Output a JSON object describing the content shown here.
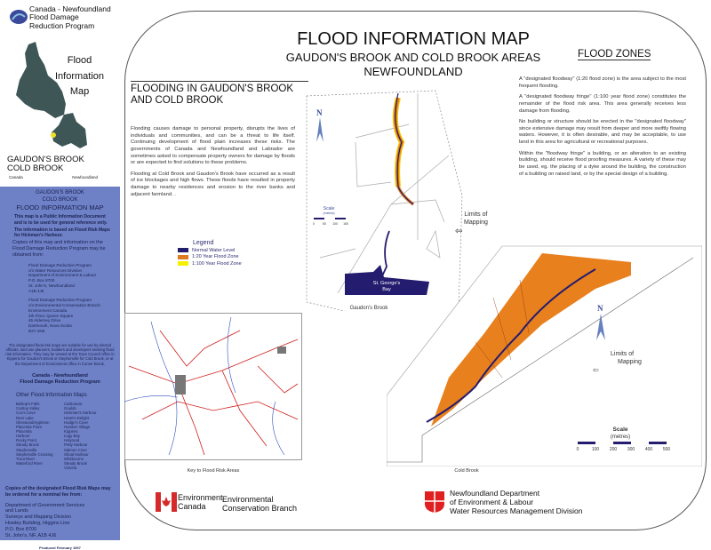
{
  "sidebar": {
    "program": [
      "Canada - Newfoundland",
      "Flood Damage",
      "Reduction Program"
    ],
    "map_title": [
      "Flood",
      "Information",
      "Map"
    ],
    "area": [
      "GAUDON'S BROOK",
      "COLD BROOK"
    ],
    "logo_canada": "Canada",
    "logo_newfoundland": "Newfoundland",
    "panel": {
      "area1": "GAUDON'S BROOK",
      "area2": "COLD BROOK",
      "heading": "FLOOD INFORMATION MAP",
      "notice1": "This map is a Public Information Document and is to be used for general reference only.",
      "notice2": "The information is based on Flood Risk Maps for Hickman's Harbour.",
      "copies": "Copies of this map and information on the Flood Damage Reduction Program may be obtained from:",
      "address1": [
        "Flood Damage Reduction Program",
        "c/o Water Resources Division",
        "Department of Environment & Labour",
        "P.O. Box 8700",
        "St. John's, Newfoundland",
        "A1B 4J6"
      ],
      "address2": [
        "Flood Damage Reduction Program",
        "c/o Environmental Conservation Branch",
        "Environment Canada",
        "4th Floor, Queen Square",
        "45 Alderney Drive",
        "Dartmouth, Nova Scotia",
        "B2Y 2N6"
      ],
      "designated": "The designated flood risk maps are suitable for use by elected officials, land use planners, builders and developers seeking flood risk information. They may be viewed at the Town Council office in Kippens for Gaudon's Brook or Stephenville for Cold Brook, or at the Department of Environment office in Corner Brook.",
      "program_name": [
        "Canada - Newfoundland",
        "Flood Damage Reduction Program"
      ],
      "other_maps_heading": "Other Flood Information Maps",
      "other_maps_left": [
        "Bishop's Falls",
        "Codroy Valley",
        "Cox's Cove",
        "Deer Lake",
        "Glenwood/Appleton",
        "Placentia Point",
        "Placentia",
        "Harbour",
        "Rocky Point",
        "Steady Brook",
        "Stephenville",
        "Stephenville Crossing",
        "Trout River",
        "Waterford River"
      ],
      "other_maps_right": [
        "Carbonear",
        "Goulds",
        "Hickman's Harbour",
        "Heart's Delight",
        "Hodge's Cove",
        "Humber Village",
        "Kippens",
        "Logy Bay",
        "Holyrood",
        "Petty Harbour",
        "Salmon Cove",
        "Shoal Harbour",
        "Whitbourne",
        "Steady Brook",
        "Victoria"
      ],
      "copies_risk": "Copies of the designated Flood Risk Maps may be ordered for a nominal fee from:",
      "address3": [
        "Department of Government Services",
        "and Lands",
        "Surveys and Mapping Division",
        "Howley Building, Higgins Line",
        "P.O. Box 8700",
        "St. John's, NF,  A1B 4J6"
      ],
      "produced": "Produced February 1997"
    }
  },
  "main": {
    "title": "FLOOD INFORMATION MAP",
    "subtitle1": "GAUDON'S BROOK AND COLD BROOK AREAS",
    "subtitle2": "NEWFOUNDLAND",
    "left_heading": "FLOODING  IN  GAUDON'S BROOK AND COLD BROOK",
    "left_paragraphs": [
      "Flooding causes damage to personal property, disrupts the lives of individuals and communities, and can be a threat to life itself. Continuing development of flood plain increases these risks. The governments of Canada and Newfoundland and Labrador are sometimes asked to compensate property owners for damage by floods or are expected to find solutions to these problems.",
      "Flooding at Cold Brook and Gaudon's Brook have occurred as a result of ice blockages and high flows.  These floods have resulted in property damage to nearby residences and erosion to the river banks and adjacent farmland. ."
    ],
    "right_heading": "FLOOD ZONES",
    "right_paragraphs": [
      "A \"designated floodway\" (1:20 flood zone) is the area subject to the most frequent flooding.",
      "A \"designated floodway fringe\" (1:100 year flood zone) constitutes the remainder of the flood risk area.   This area generally receives less damage from flooding.",
      "No building or structure should be erected in the \"designated floodway\" since extensive damage may result from deeper and more swiftly flowing waters.   However, it is often desirable, and may be acceptable, to use land in this area for agricultural or recreational purposes.",
      "Within the \"floodway fringe\" a building, or an alteration to an existing building, should receive flood proofing measures.  A variety of these may be used, eg. the placing of a dyke around the building, the construction of a building on raised land, or by the special design of a building."
    ],
    "legend": {
      "title": "Legend",
      "items": [
        {
          "label": "Normal Water Level",
          "color": "#241c6e"
        },
        {
          "label": "1:20 Year Flood Zone",
          "color": "#e07a1e"
        },
        {
          "label": "1:100 Year Flood Zone",
          "color": "#f6f000"
        }
      ]
    },
    "gaudons": {
      "north": "N",
      "scale_title": "Scale",
      "scale_units": "(metres)",
      "scale_ticks": [
        "0",
        "50",
        "100",
        "150"
      ],
      "bay": [
        "St. George's",
        "Bay"
      ],
      "caption": "Gaudon's Brook",
      "limits": [
        "Limits of",
        "Mapping"
      ]
    },
    "coldbrook": {
      "north": "N",
      "scale_title": "Scale",
      "scale_units": "(metres)",
      "scale_ticks": [
        "0",
        "100",
        "200",
        "300",
        "400",
        "500"
      ],
      "caption": "Cold Brook",
      "limits": [
        "Limits of",
        "Mapping"
      ]
    },
    "key_caption": "Key to Flood Risk Areas",
    "footer_left": {
      "env1": "Environment",
      "env2": "Canada",
      "branch1": "Environmental",
      "branch2": "Conservation Branch"
    },
    "footer_right": [
      "Newfoundland Department",
      "of Environment & Labour",
      "Water Resources Management Division"
    ]
  },
  "colors": {
    "panel": "#6e80c6",
    "flood20": "#e07a1e",
    "water": "#241c6e",
    "canada_red": "#d42a2a"
  }
}
